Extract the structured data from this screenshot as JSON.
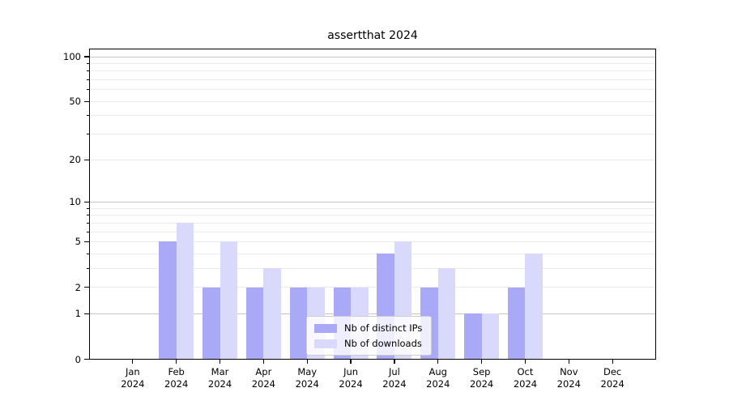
{
  "chart_data": {
    "type": "bar",
    "title": "assertthat 2024",
    "year": "2024",
    "months": [
      "Jan",
      "Feb",
      "Mar",
      "Apr",
      "May",
      "Jun",
      "Jul",
      "Aug",
      "Sep",
      "Oct",
      "Nov",
      "Dec"
    ],
    "series": [
      {
        "name": "Nb of distinct IPs",
        "color": "#a9a9f8",
        "values": [
          0,
          5,
          2,
          2,
          2,
          2,
          4,
          2,
          1,
          2,
          0,
          0
        ]
      },
      {
        "name": "Nb of downloads",
        "color": "#d9d9fb",
        "values": [
          0,
          7,
          5,
          3,
          2,
          2,
          5,
          3,
          1,
          4,
          0,
          0
        ]
      }
    ],
    "y_axis": {
      "scale": "log1p",
      "tick_values": [
        0,
        1,
        2,
        5,
        10,
        20,
        50,
        100
      ],
      "tick_labels": [
        "0",
        "1",
        "2",
        "5",
        "10",
        "20",
        "50",
        "100"
      ],
      "major_gridlines": [
        1,
        10,
        100
      ],
      "minor_gridlines": [
        2,
        3,
        4,
        5,
        6,
        7,
        8,
        9,
        20,
        30,
        40,
        50,
        60,
        70,
        80,
        90
      ],
      "ymax": 114,
      "ymin": 0
    },
    "x_axis": {
      "label_format": "month over year"
    },
    "legend": {
      "position": "lower center"
    },
    "grid": true,
    "colors": {
      "series_ips": "#a9a9f8",
      "series_downloads": "#d9d9fb",
      "gridline_major": "#c4c4c4",
      "gridline_minor": "#ebebeb",
      "axis": "#000000",
      "background": "#ffffff"
    }
  }
}
